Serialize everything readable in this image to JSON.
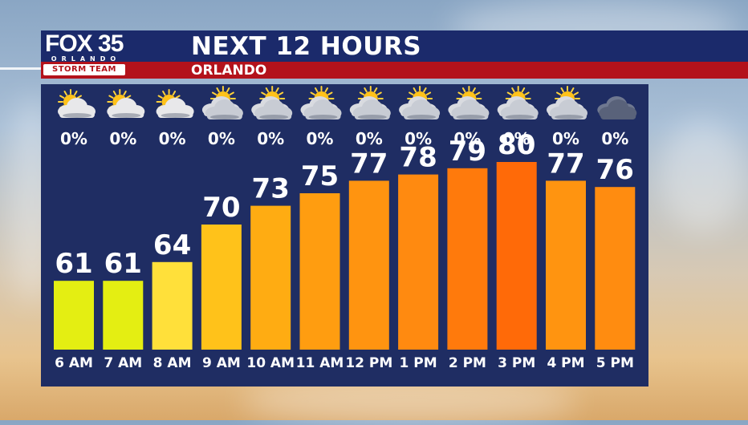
{
  "header": {
    "title": "NEXT 12 HOURS",
    "location": "ORLANDO"
  },
  "logo": {
    "network": "FOX 35",
    "city": "ORLANDO",
    "team": "STORM TEAM"
  },
  "colors": {
    "header_bg": "#1b2a6b",
    "subheader_bg": "#b3121b",
    "panel_bg": "#1f2d63"
  },
  "chart_data": {
    "type": "bar",
    "categories": [
      "6 AM",
      "7 AM",
      "8 AM",
      "9 AM",
      "10 AM",
      "11 AM",
      "12 PM",
      "1 PM",
      "2 PM",
      "3 PM",
      "4 PM",
      "5 PM"
    ],
    "values": [
      61,
      61,
      64,
      70,
      73,
      75,
      77,
      78,
      79,
      80,
      77,
      76
    ],
    "precip": [
      "0%",
      "0%",
      "0%",
      "0%",
      "0%",
      "0%",
      "0%",
      "0%",
      "0%",
      "0%",
      "0%",
      "0%"
    ],
    "icons": [
      "partly-cloudy-icon",
      "partly-cloudy-icon",
      "partly-cloudy-icon",
      "mostly-cloudy-icon",
      "mostly-cloudy-icon",
      "mostly-cloudy-icon",
      "mostly-cloudy-icon",
      "mostly-cloudy-icon",
      "mostly-cloudy-icon",
      "mostly-cloudy-icon",
      "mostly-cloudy-icon",
      "cloudy-night-icon"
    ],
    "bar_colors": [
      "#e4ee12",
      "#e4ee12",
      "#ffe03a",
      "#ffc21a",
      "#ffac12",
      "#ff9d10",
      "#ff9410",
      "#ff8a10",
      "#ff7a0c",
      "#ff6a08",
      "#ff9410",
      "#ff8c10"
    ],
    "ylim": [
      50,
      85
    ]
  }
}
